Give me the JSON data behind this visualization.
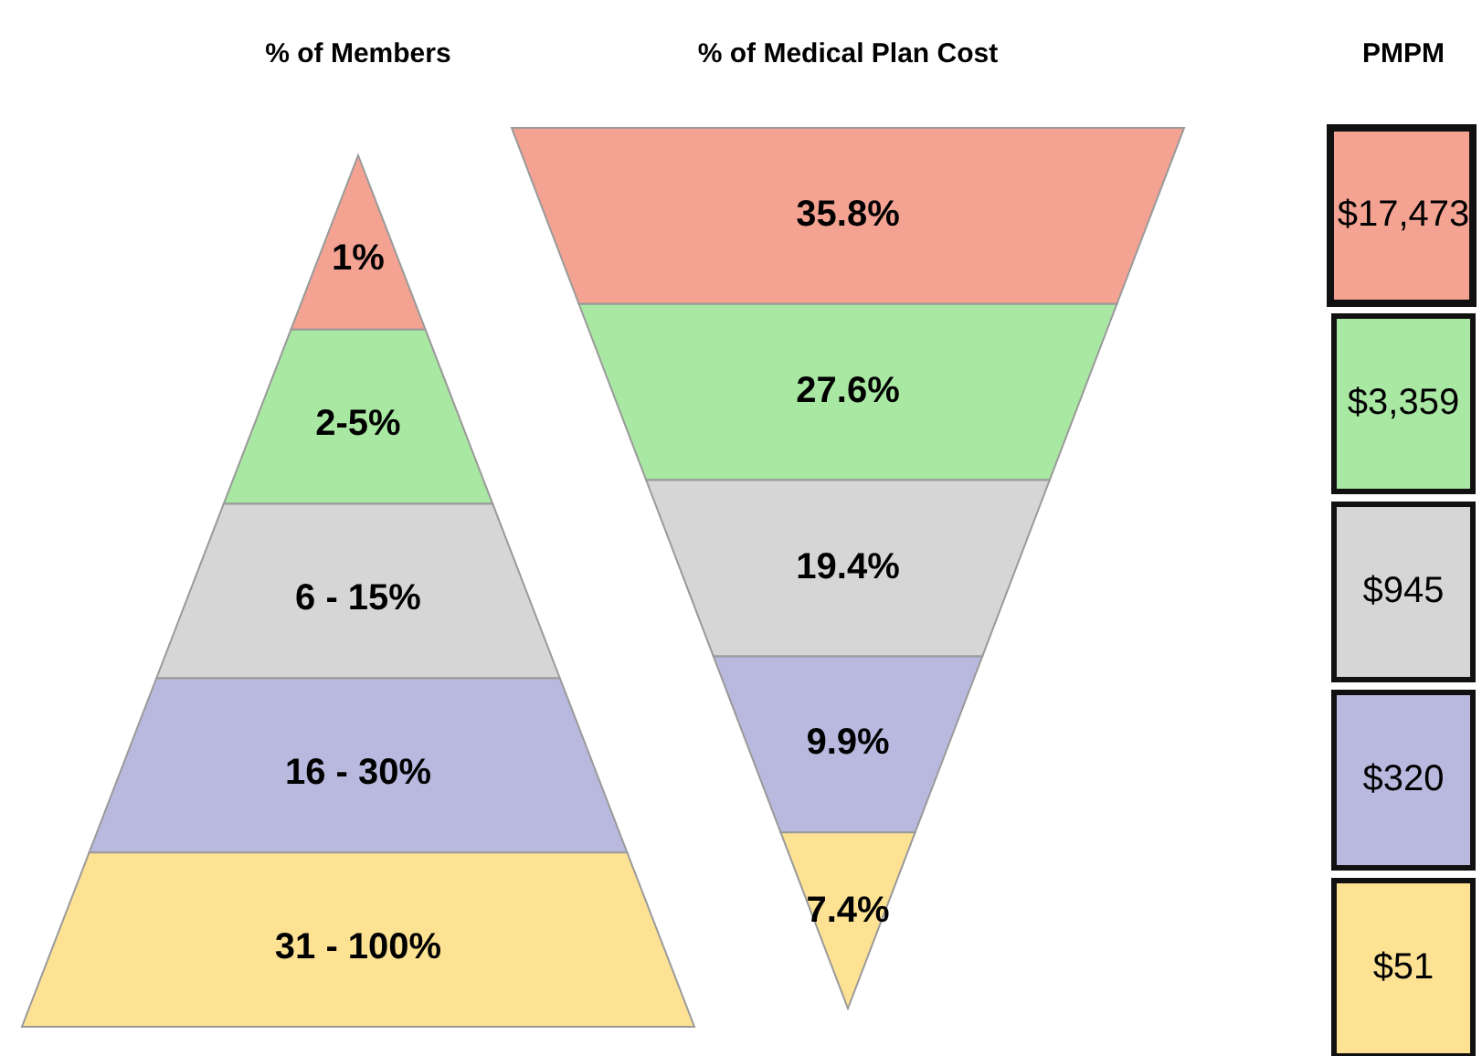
{
  "chart_data": [
    {
      "type": "other",
      "title": "% of Members",
      "categories": [
        "1%",
        "2-5%",
        "6 - 15%",
        "16 - 30%",
        "31 - 100%"
      ],
      "colors": [
        "#f4a393",
        "#a9e8a3",
        "#d6d6d6",
        "#b9b9df",
        "#fde294"
      ]
    },
    {
      "type": "other",
      "title": "% of Medical Plan Cost",
      "values": [
        35.8,
        27.6,
        19.4,
        9.9,
        7.4
      ],
      "value_labels": [
        "35.8%",
        "27.6%",
        "19.4%",
        "9.9%",
        "7.4%"
      ],
      "colors": [
        "#f4a393",
        "#a9e8a3",
        "#d6d6d6",
        "#b9b9df",
        "#fde294"
      ]
    },
    {
      "type": "other",
      "title": "PMPM",
      "values": [
        17473,
        3359,
        945,
        320,
        51
      ],
      "value_labels": [
        "$17,473",
        "$3,359",
        "$945",
        "$320",
        "$51"
      ],
      "colors": [
        "#f4a393",
        "#a9e8a3",
        "#d6d6d6",
        "#b9b9df",
        "#fde294"
      ]
    }
  ]
}
